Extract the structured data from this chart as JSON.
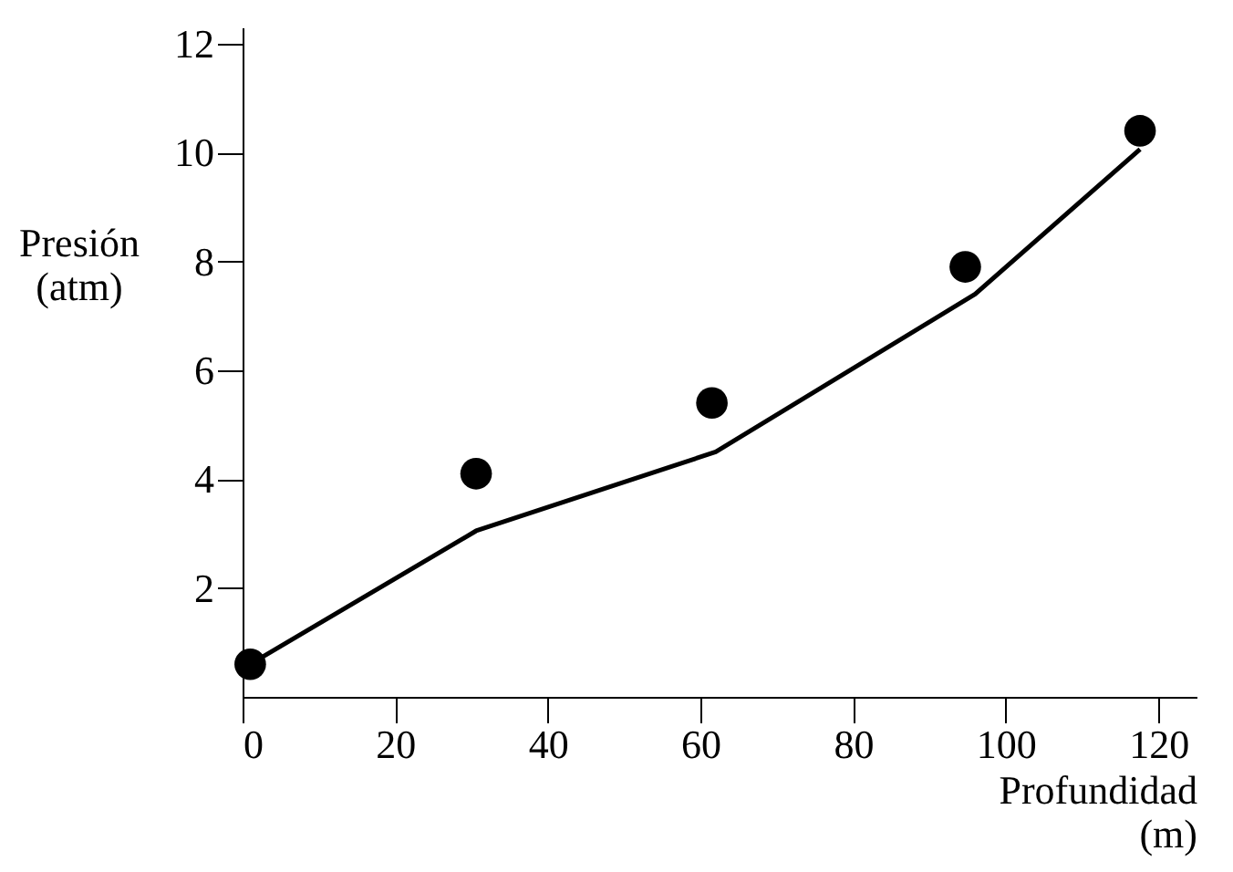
{
  "chart_data": {
    "type": "line",
    "xlabel": "Profundidad\n(m)",
    "ylabel": "Presión\n(atm)",
    "xlim": [
      0,
      125
    ],
    "xticks": [
      0,
      20,
      40,
      60,
      80,
      100,
      120
    ],
    "ylim": [
      0,
      12.3
    ],
    "yticks": [
      2,
      4,
      6,
      8,
      10,
      12
    ],
    "grid": false,
    "series": [
      {
        "type": "scatter",
        "marker": "circle",
        "color": "#000000",
        "x": [
          1,
          30.6,
          61.5,
          94.7,
          117.6
        ],
        "values": [
          0.6,
          4.1,
          5.4,
          7.9,
          10.4
        ]
      },
      {
        "marker": "none",
        "line_style": "solid",
        "color": "#000000",
        "x": [
          1,
          30.6,
          62,
          96,
          117.6
        ],
        "values": [
          0.6,
          3.05,
          4.5,
          7.4,
          10.06
        ]
      }
    ]
  }
}
